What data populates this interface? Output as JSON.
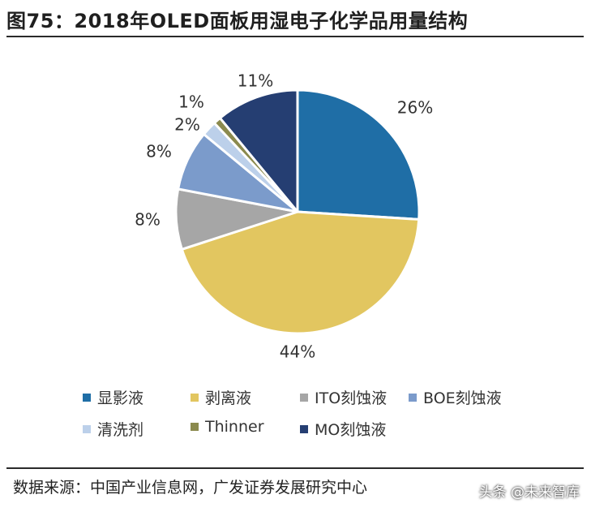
{
  "title": "图75：2018年OLED面板用湿电子化学品用量结构",
  "source": "数据来源：中国产业信息网，广发证券发展研究中心",
  "watermark": "头条 @未来智库",
  "chart_data": {
    "type": "pie",
    "title": "",
    "slices": [
      {
        "label": "显影液",
        "value": 26,
        "display": "26%",
        "color": "#1f6ea6"
      },
      {
        "label": "剥离液",
        "value": 44,
        "display": "44%",
        "color": "#e2c660"
      },
      {
        "label": "ITO刻蚀液",
        "value": 8,
        "display": "8%",
        "color": "#a6a6a6"
      },
      {
        "label": "BOE刻蚀液",
        "value": 8,
        "display": "8%",
        "color": "#7b9bcb"
      },
      {
        "label": "清洗剂",
        "value": 2,
        "display": "2%",
        "color": "#bcd0ea"
      },
      {
        "label": "Thinner",
        "value": 1,
        "display": "1%",
        "color": "#8b8a4e"
      },
      {
        "label": "MO刻蚀液",
        "value": 11,
        "display": "11%",
        "color": "#253e72"
      }
    ],
    "legend_position": "bottom",
    "start_angle": "12 o'clock",
    "direction": "clockwise"
  }
}
